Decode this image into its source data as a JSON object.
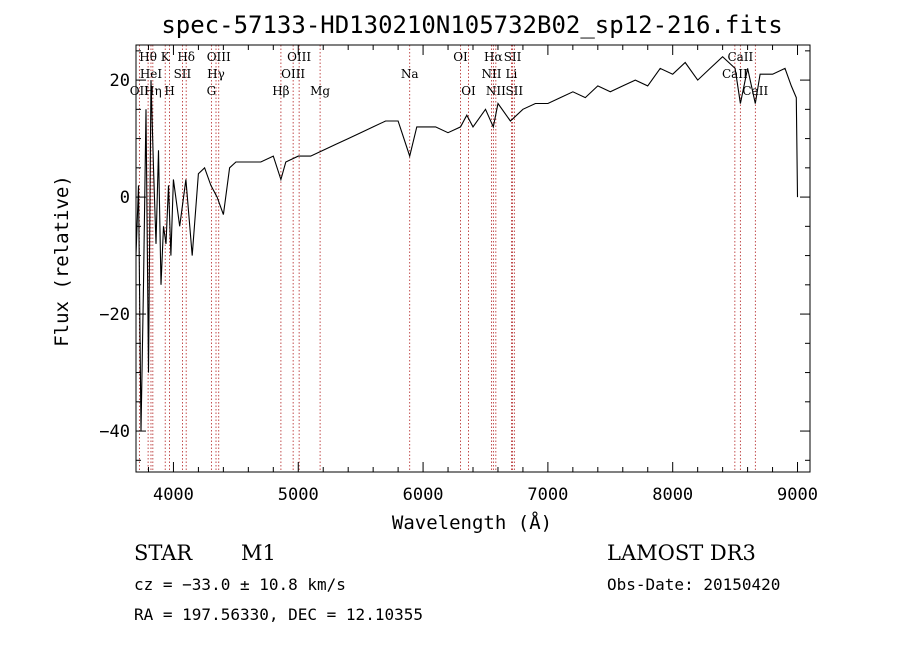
{
  "chart_data": {
    "type": "line",
    "title": "spec-57133-HD130210N105732B02_sp12-216.fits",
    "xlabel": "Wavelength (Å)",
    "ylabel": "Flux (relative)",
    "xlim": [
      3700,
      9100
    ],
    "ylim": [
      -47,
      26
    ],
    "x_ticks": [
      4000,
      5000,
      6000,
      7000,
      8000,
      9000
    ],
    "y_ticks": [
      -40,
      -20,
      0,
      20
    ],
    "y_tick_labels": [
      "−40",
      "−20",
      "0",
      "20"
    ],
    "x_minor_step": 200,
    "y_minor_step": 5,
    "series": [
      {
        "name": "spectrum",
        "x": [
          3700,
          3720,
          3740,
          3760,
          3780,
          3800,
          3820,
          3840,
          3860,
          3880,
          3900,
          3920,
          3940,
          3960,
          3980,
          4000,
          4050,
          4100,
          4150,
          4200,
          4250,
          4300,
          4350,
          4400,
          4450,
          4500,
          4600,
          4700,
          4800,
          4861,
          4900,
          5000,
          5100,
          5200,
          5300,
          5400,
          5500,
          5600,
          5700,
          5800,
          5893,
          5950,
          6000,
          6100,
          6200,
          6300,
          6350,
          6400,
          6500,
          6563,
          6600,
          6700,
          6800,
          6900,
          7000,
          7100,
          7200,
          7300,
          7400,
          7500,
          7600,
          7700,
          7800,
          7900,
          8000,
          8100,
          8200,
          8300,
          8400,
          8500,
          8542,
          8600,
          8662,
          8700,
          8800,
          8900,
          8950,
          8990,
          9000
        ],
        "values": [
          -10,
          2,
          -40,
          -15,
          15,
          -30,
          20,
          5,
          -8,
          8,
          -15,
          -5,
          -8,
          2,
          -10,
          3,
          -5,
          3,
          -10,
          4,
          5,
          2,
          0,
          -3,
          5,
          6,
          6,
          6,
          7,
          3,
          6,
          7,
          7,
          8,
          9,
          10,
          11,
          12,
          13,
          13,
          7,
          12,
          12,
          12,
          11,
          12,
          14,
          12,
          15,
          12,
          16,
          13,
          15,
          16,
          16,
          17,
          18,
          17,
          19,
          18,
          19,
          20,
          19,
          22,
          21,
          23,
          20,
          22,
          24,
          22,
          16,
          22,
          16,
          21,
          21,
          22,
          19,
          17,
          0
        ]
      }
    ],
    "spectral_lines": [
      {
        "name": "Hθ",
        "x": 3797,
        "row": 1
      },
      {
        "name": "OII",
        "x": 3727,
        "row": 3
      },
      {
        "name": "HeI",
        "x": 3820,
        "row": 2
      },
      {
        "name": "Hη",
        "x": 3835,
        "row": 3
      },
      {
        "name": "K",
        "x": 3934,
        "row": 1
      },
      {
        "name": "H",
        "x": 3969,
        "row": 3
      },
      {
        "name": "SII",
        "x": 4072,
        "row": 2
      },
      {
        "name": "Hδ",
        "x": 4102,
        "row": 1
      },
      {
        "name": "OIII",
        "x": 4363,
        "row": 1
      },
      {
        "name": "Hγ",
        "x": 4341,
        "row": 2
      },
      {
        "name": "G",
        "x": 4304,
        "row": 3
      },
      {
        "name": "Hβ",
        "x": 4861,
        "row": 3
      },
      {
        "name": "OIII",
        "x": 5007,
        "row": 1
      },
      {
        "name": "OIII",
        "x": 4959,
        "row": 2
      },
      {
        "name": "Mg",
        "x": 5175,
        "row": 3
      },
      {
        "name": "Na",
        "x": 5893,
        "row": 2
      },
      {
        "name": "OI",
        "x": 6300,
        "row": 1
      },
      {
        "name": "OI",
        "x": 6364,
        "row": 3
      },
      {
        "name": "Hα",
        "x": 6563,
        "row": 1
      },
      {
        "name": "NII",
        "x": 6548,
        "row": 2
      },
      {
        "name": "NII",
        "x": 6583,
        "row": 3
      },
      {
        "name": "SII",
        "x": 6717,
        "row": 1
      },
      {
        "name": "Li",
        "x": 6708,
        "row": 2
      },
      {
        "name": "SII",
        "x": 6731,
        "row": 3
      },
      {
        "name": "CaII",
        "x": 8542,
        "row": 1
      },
      {
        "name": "CaII",
        "x": 8498,
        "row": 2
      },
      {
        "name": "CaII",
        "x": 8662,
        "row": 3
      }
    ]
  },
  "info": {
    "object_type": "STAR",
    "subclass": "M1",
    "survey": "LAMOST DR3",
    "cz": "cz = −33.0 ± 10.8 km/s",
    "obs_date": "Obs-Date: 20150420",
    "coords": "RA = 197.56330, DEC =  12.10355"
  },
  "colors": {
    "spectrum": "#000000",
    "line_marker": "#b22222",
    "axis": "#000000"
  }
}
